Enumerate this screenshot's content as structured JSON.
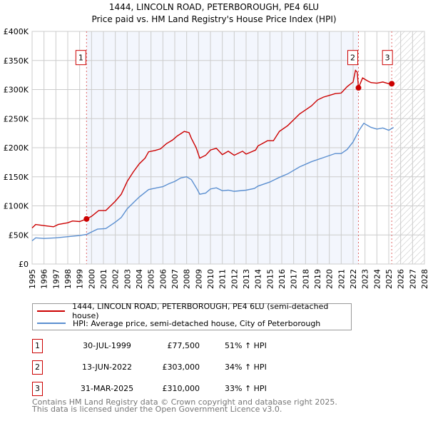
{
  "chart_data": {
    "type": "line",
    "title": "1444, LINCOLN ROAD, PETERBOROUGH, PE4 6LU",
    "subtitle": "Price paid vs. HM Land Registry's House Price Index (HPI)",
    "xlim": [
      1995,
      2028
    ],
    "ylim": [
      0,
      400000
    ],
    "grid": true,
    "y_ticks": [
      {
        "v": 0,
        "label": "£0"
      },
      {
        "v": 50000,
        "label": "£50K"
      },
      {
        "v": 100000,
        "label": "£100K"
      },
      {
        "v": 150000,
        "label": "£150K"
      },
      {
        "v": 200000,
        "label": "£200K"
      },
      {
        "v": 250000,
        "label": "£250K"
      },
      {
        "v": 300000,
        "label": "£300K"
      },
      {
        "v": 350000,
        "label": "£350K"
      },
      {
        "v": 400000,
        "label": "£400K"
      }
    ],
    "x_ticks": [
      "1995",
      "1996",
      "1997",
      "1998",
      "1999",
      "2000",
      "2001",
      "2002",
      "2003",
      "2004",
      "2005",
      "2006",
      "2007",
      "2008",
      "2009",
      "2010",
      "2011",
      "2012",
      "2013",
      "2014",
      "2015",
      "2016",
      "2017",
      "2018",
      "2019",
      "2020",
      "2021",
      "2022",
      "2023",
      "2024",
      "2025",
      "2026",
      "2027",
      "2028"
    ],
    "shaded_range": [
      1999.58,
      2022.45
    ],
    "future_hatch_from": 2025.5,
    "series": [
      {
        "name": "1444, LINCOLN ROAD, PETERBOROUGH, PE4 6LU (semi-detached house)",
        "color": "#cc0000",
        "points": [
          [
            1995,
            62000
          ],
          [
            1995.3,
            68000
          ],
          [
            1996,
            66000
          ],
          [
            1996.8,
            64000
          ],
          [
            1997.2,
            68000
          ],
          [
            1998,
            71000
          ],
          [
            1998.4,
            74000
          ],
          [
            1999,
            73000
          ],
          [
            1999.58,
            77500
          ],
          [
            2000,
            82000
          ],
          [
            2000.6,
            92000
          ],
          [
            2001.2,
            92000
          ],
          [
            2001.6,
            100000
          ],
          [
            2002,
            108000
          ],
          [
            2002.5,
            120000
          ],
          [
            2003,
            142000
          ],
          [
            2003.5,
            158000
          ],
          [
            2004,
            172000
          ],
          [
            2004.5,
            182000
          ],
          [
            2004.8,
            193000
          ],
          [
            2005.3,
            195000
          ],
          [
            2005.8,
            198000
          ],
          [
            2006.3,
            207000
          ],
          [
            2006.8,
            213000
          ],
          [
            2007.2,
            220000
          ],
          [
            2007.8,
            228000
          ],
          [
            2008.2,
            226000
          ],
          [
            2008.4,
            216000
          ],
          [
            2008.8,
            200000
          ],
          [
            2009.1,
            182000
          ],
          [
            2009.6,
            187000
          ],
          [
            2010,
            196000
          ],
          [
            2010.5,
            199000
          ],
          [
            2011,
            188000
          ],
          [
            2011.5,
            194000
          ],
          [
            2012,
            187000
          ],
          [
            2012.7,
            194000
          ],
          [
            2013,
            189000
          ],
          [
            2013.8,
            196000
          ],
          [
            2014,
            203000
          ],
          [
            2014.8,
            212000
          ],
          [
            2015.3,
            212000
          ],
          [
            2015.8,
            228000
          ],
          [
            2016.5,
            238000
          ],
          [
            2017,
            248000
          ],
          [
            2017.5,
            258000
          ],
          [
            2018,
            265000
          ],
          [
            2018.5,
            272000
          ],
          [
            2019,
            282000
          ],
          [
            2019.5,
            287000
          ],
          [
            2020,
            290000
          ],
          [
            2020.5,
            293000
          ],
          [
            2021,
            294000
          ],
          [
            2021.5,
            305000
          ],
          [
            2022,
            313000
          ],
          [
            2022.2,
            333000
          ],
          [
            2022.35,
            330000
          ],
          [
            2022.45,
            303000
          ],
          [
            2022.8,
            320000
          ],
          [
            2023.2,
            315000
          ],
          [
            2023.5,
            312000
          ],
          [
            2024,
            311000
          ],
          [
            2024.5,
            313000
          ],
          [
            2025,
            310000
          ],
          [
            2025.25,
            310000
          ]
        ]
      },
      {
        "name": "HPI: Average price, semi-detached house, City of Peterborough",
        "color": "#5b8fd0",
        "points": [
          [
            1995,
            40000
          ],
          [
            1995.3,
            45000
          ],
          [
            1996,
            44000
          ],
          [
            1997,
            45000
          ],
          [
            1998,
            47000
          ],
          [
            1999,
            49000
          ],
          [
            1999.6,
            51000
          ],
          [
            2000,
            55000
          ],
          [
            2000.5,
            60000
          ],
          [
            2001.2,
            61000
          ],
          [
            2002,
            72000
          ],
          [
            2002.5,
            80000
          ],
          [
            2003,
            95000
          ],
          [
            2003.5,
            105000
          ],
          [
            2004,
            115000
          ],
          [
            2004.8,
            128000
          ],
          [
            2005.5,
            131000
          ],
          [
            2006,
            133000
          ],
          [
            2006.5,
            138000
          ],
          [
            2007,
            142000
          ],
          [
            2007.5,
            148000
          ],
          [
            2008,
            150000
          ],
          [
            2008.4,
            145000
          ],
          [
            2008.9,
            128000
          ],
          [
            2009.1,
            120000
          ],
          [
            2009.6,
            122000
          ],
          [
            2010,
            129000
          ],
          [
            2010.5,
            131000
          ],
          [
            2011,
            126000
          ],
          [
            2011.5,
            127000
          ],
          [
            2012,
            125000
          ],
          [
            2013,
            127000
          ],
          [
            2013.7,
            130000
          ],
          [
            2014,
            134000
          ],
          [
            2015,
            141000
          ],
          [
            2015.8,
            149000
          ],
          [
            2016.5,
            155000
          ],
          [
            2017.5,
            167000
          ],
          [
            2018.5,
            176000
          ],
          [
            2019.5,
            183000
          ],
          [
            2020.5,
            190000
          ],
          [
            2021,
            190000
          ],
          [
            2021.5,
            197000
          ],
          [
            2022,
            210000
          ],
          [
            2022.5,
            230000
          ],
          [
            2022.9,
            242000
          ],
          [
            2023.5,
            235000
          ],
          [
            2024,
            232000
          ],
          [
            2024.5,
            234000
          ],
          [
            2025,
            230000
          ],
          [
            2025.4,
            235000
          ]
        ]
      }
    ],
    "sales": [
      {
        "id": "1",
        "x": 1999.58,
        "value": 77500
      },
      {
        "id": "2",
        "x": 2022.45,
        "value": 303000
      },
      {
        "id": "3",
        "x": 2025.25,
        "value": 310000
      }
    ],
    "marker_label_value": 355000
  },
  "legend": {
    "property": "1444, LINCOLN ROAD, PETERBOROUGH, PE4 6LU (semi-detached house)",
    "hpi": "HPI: Average price, semi-detached house, City of Peterborough"
  },
  "transactions": [
    {
      "id": "1",
      "date": "30-JUL-1999",
      "price": "£77,500",
      "hpi": "51% ↑ HPI"
    },
    {
      "id": "2",
      "date": "13-JUN-2022",
      "price": "£303,000",
      "hpi": "34% ↑ HPI"
    },
    {
      "id": "3",
      "date": "31-MAR-2025",
      "price": "£310,000",
      "hpi": "33% ↑ HPI"
    }
  ],
  "footer": {
    "line1": "Contains HM Land Registry data © Crown copyright and database right 2025.",
    "line2": "This data is licensed under the Open Government Licence v3.0."
  }
}
